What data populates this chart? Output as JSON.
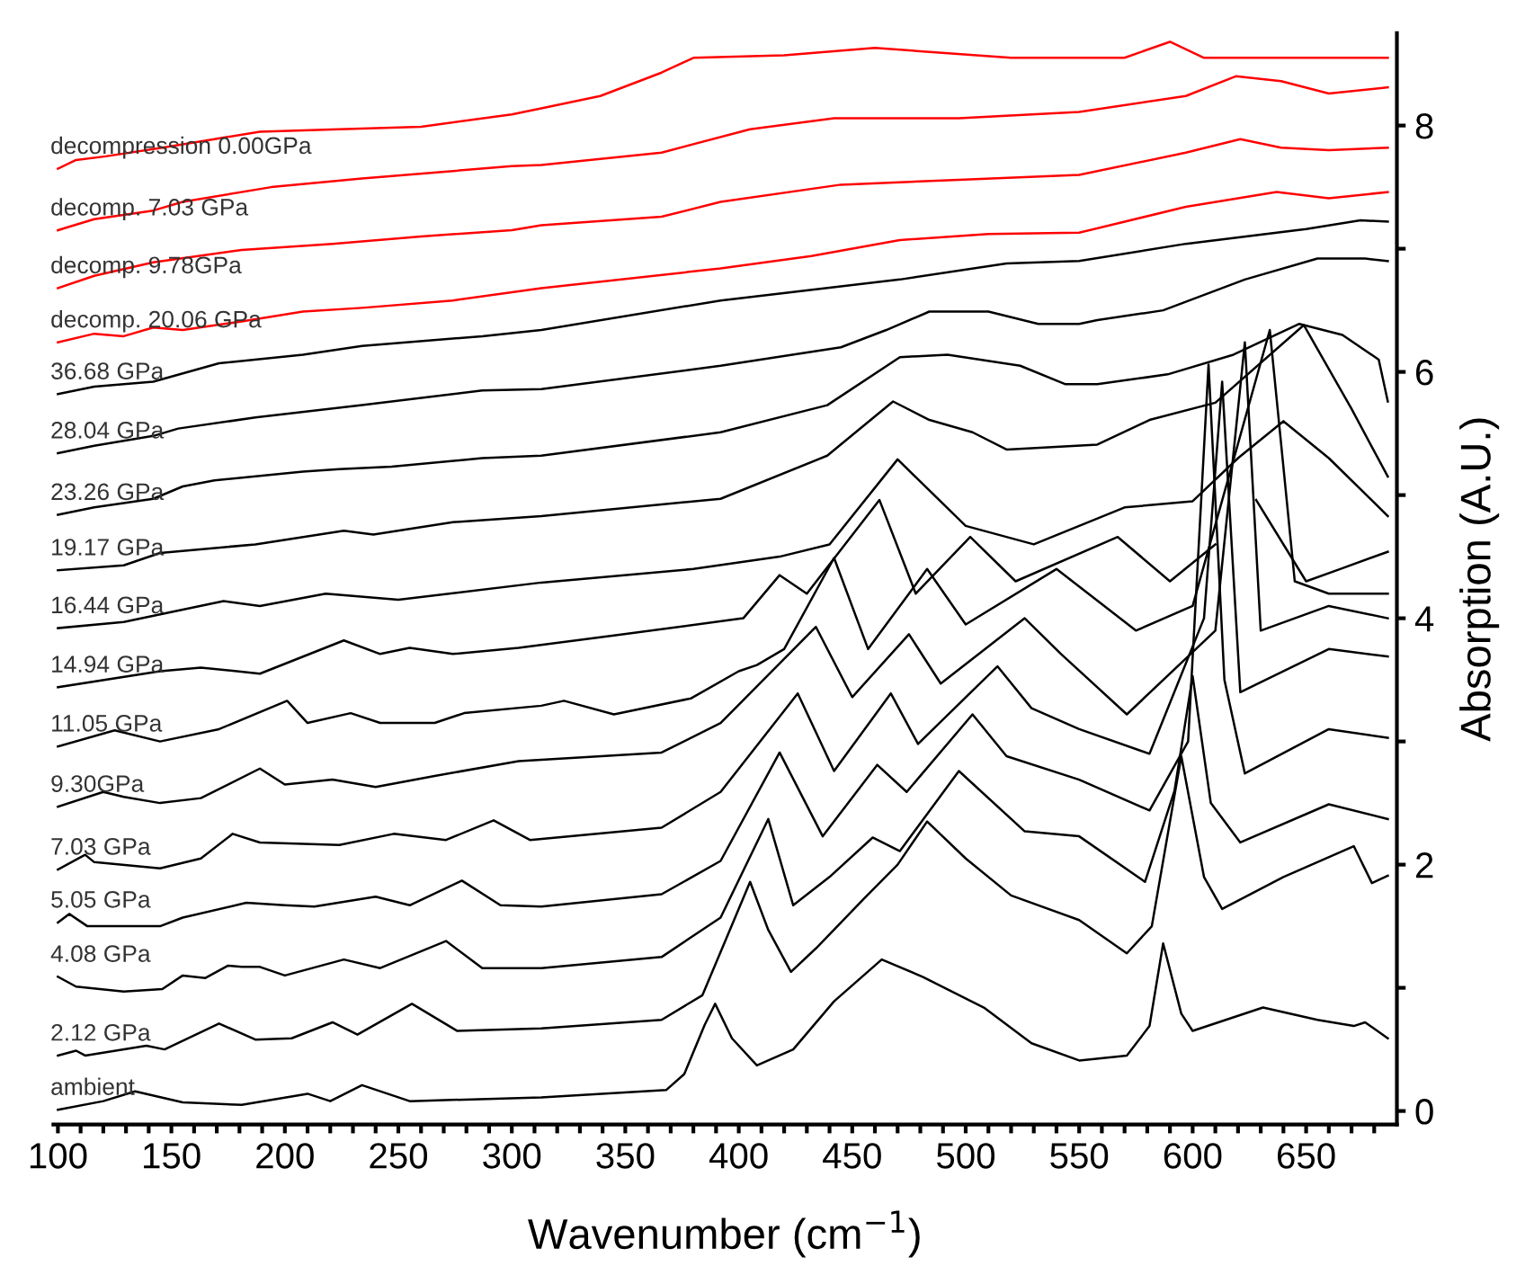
{
  "chart_data": {
    "type": "line",
    "xlabel": "Wavenumber (cm$^{−1}$)",
    "ylabel": "Absorption (A.U.)",
    "xlim": [
      98,
      690
    ],
    "ylim": [
      -0.11,
      8.75
    ],
    "xticks": [
      100,
      {
        "value": 110,
        "label": null
      },
      {
        "value": 120,
        "label": null
      },
      {
        "value": 130,
        "label": null
      },
      {
        "value": 140,
        "label": null
      },
      150,
      {
        "value": 160,
        "label": null
      },
      {
        "value": 170,
        "label": null
      },
      {
        "value": 180,
        "label": null
      },
      {
        "value": 190,
        "label": null
      },
      200,
      {
        "value": 210,
        "label": null
      },
      {
        "value": 220,
        "label": null
      },
      {
        "value": 230,
        "label": null
      },
      {
        "value": 240,
        "label": null
      },
      250,
      {
        "value": 260,
        "label": null
      },
      {
        "value": 270,
        "label": null
      },
      {
        "value": 280,
        "label": null
      },
      {
        "value": 290,
        "label": null
      },
      300,
      {
        "value": 310,
        "label": null
      },
      {
        "value": 320,
        "label": null
      },
      {
        "value": 330,
        "label": null
      },
      {
        "value": 340,
        "label": null
      },
      350,
      {
        "value": 360,
        "label": null
      },
      {
        "value": 370,
        "label": null
      },
      {
        "value": 380,
        "label": null
      },
      {
        "value": 390,
        "label": null
      },
      400,
      {
        "value": 410,
        "label": null
      },
      {
        "value": 420,
        "label": null
      },
      {
        "value": 430,
        "label": null
      },
      {
        "value": 440,
        "label": null
      },
      450,
      {
        "value": 460,
        "label": null
      },
      {
        "value": 470,
        "label": null
      },
      {
        "value": 480,
        "label": null
      },
      {
        "value": 490,
        "label": null
      },
      500,
      {
        "value": 510,
        "label": null
      },
      {
        "value": 520,
        "label": null
      },
      {
        "value": 530,
        "label": null
      },
      {
        "value": 540,
        "label": null
      },
      550,
      {
        "value": 560,
        "label": null
      },
      {
        "value": 570,
        "label": null
      },
      {
        "value": 580,
        "label": null
      },
      {
        "value": 590,
        "label": null
      },
      600,
      {
        "value": 610,
        "label": null
      },
      {
        "value": 620,
        "label": null
      },
      {
        "value": 630,
        "label": null
      },
      {
        "value": 640,
        "label": null
      },
      650,
      {
        "value": 660,
        "label": null
      },
      {
        "value": 670,
        "label": null
      },
      {
        "value": 680,
        "label": null
      }
    ],
    "yticks": [
      0,
      {
        "value": 1,
        "label": null
      },
      2,
      {
        "value": 3,
        "label": null
      },
      4,
      {
        "value": 5,
        "label": null
      },
      6,
      {
        "value": 7,
        "label": null
      },
      8
    ],
    "grid": false,
    "legend": false,
    "marker": "none",
    "line_style": "solid",
    "series": [
      {
        "name": "ambient",
        "color": "#000000",
        "x": [
          100,
          120,
          134,
          155,
          181,
          210,
          220,
          234,
          255,
          313,
          368,
          376,
          385,
          389.6,
          397,
          408,
          424,
          442,
          463,
          481,
          508,
          529,
          550,
          571,
          581,
          587,
          595,
          600,
          631,
          655,
          671,
          676,
          686
        ],
        "values": [
          0.01,
          0.08,
          0.16,
          0.07,
          0.05,
          0.14,
          0.08,
          0.21,
          0.08,
          0.11,
          0.17,
          0.3,
          0.7,
          0.87,
          0.59,
          0.37,
          0.5,
          0.89,
          1.23,
          1.09,
          0.84,
          0.55,
          0.41,
          0.45,
          0.69,
          1.36,
          0.79,
          0.65,
          0.84,
          0.74,
          0.69,
          0.72,
          0.59
        ]
      },
      {
        "name": "2.12 GPa",
        "color": "#000000",
        "x": [
          100,
          108,
          112,
          139,
          147,
          171,
          187,
          203,
          221,
          232,
          256,
          276,
          313,
          366,
          384,
          405,
          413,
          423,
          434,
          455,
          470,
          483,
          500,
          520,
          550,
          571,
          582,
          595,
          605,
          613,
          640,
          671,
          679,
          686
        ],
        "values": [
          0.45,
          0.49,
          0.45,
          0.53,
          0.5,
          0.71,
          0.58,
          0.59,
          0.72,
          0.62,
          0.87,
          0.65,
          0.67,
          0.74,
          0.94,
          1.86,
          1.47,
          1.13,
          1.32,
          1.72,
          2.0,
          2.35,
          2.05,
          1.75,
          1.55,
          1.28,
          1.5,
          2.88,
          1.9,
          1.64,
          1.9,
          2.15,
          1.85,
          1.91
        ]
      },
      {
        "name": "4.08 GPa",
        "color": "#000000",
        "x": [
          100,
          108,
          129,
          146,
          155,
          165,
          175,
          181,
          189,
          200,
          226,
          242,
          271,
          287,
          313,
          366,
          392,
          413,
          424,
          440,
          459,
          471,
          497,
          526,
          550,
          579,
          592,
          600,
          608,
          621,
          660,
          686
        ],
        "values": [
          1.09,
          1.01,
          0.97,
          0.99,
          1.1,
          1.08,
          1.18,
          1.17,
          1.17,
          1.1,
          1.23,
          1.16,
          1.38,
          1.16,
          1.16,
          1.25,
          1.57,
          2.37,
          1.67,
          1.9,
          2.22,
          2.11,
          2.76,
          2.27,
          2.23,
          1.86,
          2.6,
          3.53,
          2.5,
          2.18,
          2.49,
          2.37
        ]
      },
      {
        "name": "5.05 GPa",
        "color": "#000000",
        "x": [
          100,
          105,
          113,
          145,
          155,
          183,
          200,
          213,
          240,
          255,
          278,
          295,
          313,
          366,
          392,
          418,
          437,
          461,
          474,
          503,
          518,
          550,
          581,
          598,
          607,
          614,
          623,
          660,
          686
        ],
        "values": [
          1.53,
          1.6,
          1.5,
          1.5,
          1.57,
          1.69,
          1.67,
          1.66,
          1.74,
          1.67,
          1.87,
          1.67,
          1.66,
          1.76,
          2.03,
          2.91,
          2.23,
          2.81,
          2.59,
          3.22,
          2.88,
          2.69,
          2.44,
          3.0,
          6.06,
          3.5,
          2.74,
          3.1,
          3.03
        ]
      },
      {
        "name": "7.03 GPa",
        "color": "#000000",
        "x": [
          100,
          112,
          116,
          145,
          163,
          177,
          189,
          224,
          248,
          271,
          292,
          308,
          366,
          392,
          426,
          442,
          467,
          479,
          514,
          529,
          550,
          581,
          605,
          613,
          621,
          660,
          686
        ],
        "values": [
          1.96,
          2.08,
          2.02,
          1.97,
          2.05,
          2.25,
          2.18,
          2.16,
          2.25,
          2.2,
          2.36,
          2.2,
          2.3,
          2.59,
          3.39,
          2.76,
          3.39,
          2.98,
          3.61,
          3.27,
          3.1,
          2.9,
          4.0,
          5.92,
          3.4,
          3.75,
          3.69
        ]
      },
      {
        "name": "9.30GPa",
        "color": "#000000",
        "x": [
          100,
          120,
          129,
          145,
          163,
          189,
          200,
          221,
          240,
          266,
          303,
          366,
          392,
          434,
          450,
          475,
          489,
          526,
          542,
          571,
          610,
          623,
          630,
          660,
          686
        ],
        "values": [
          2.47,
          2.59,
          2.55,
          2.5,
          2.54,
          2.78,
          2.65,
          2.69,
          2.63,
          2.72,
          2.84,
          2.91,
          3.15,
          3.93,
          3.36,
          3.87,
          3.47,
          4.0,
          3.71,
          3.22,
          3.9,
          6.24,
          3.9,
          4.1,
          4.0
        ]
      },
      {
        "name": "11.05 GPa",
        "color": "#000000",
        "x": [
          100,
          125,
          145,
          171,
          201,
          210,
          229,
          242,
          266,
          279,
          313,
          323,
          345,
          379,
          400,
          408,
          420,
          442,
          457,
          483,
          500,
          540,
          575,
          600,
          634,
          645,
          660,
          686
        ],
        "values": [
          2.96,
          3.09,
          3.0,
          3.1,
          3.33,
          3.15,
          3.23,
          3.15,
          3.15,
          3.23,
          3.29,
          3.33,
          3.22,
          3.35,
          3.57,
          3.62,
          3.75,
          4.49,
          3.75,
          4.4,
          3.95,
          4.4,
          3.9,
          4.1,
          6.34,
          4.3,
          4.2,
          4.2
        ]
      },
      {
        "name": "14.94 GPa",
        "color": "#000000",
        "x": [
          100,
          145,
          163,
          189,
          226,
          242,
          255,
          274,
          303,
          345,
          402,
          418,
          430,
          462,
          478,
          502,
          522,
          567,
          590,
          610,
          620,
          628,
          650,
          665,
          686
        ],
        "values": [
          3.44,
          3.57,
          3.6,
          3.55,
          3.82,
          3.71,
          3.76,
          3.71,
          3.76,
          3.86,
          4.0,
          4.35,
          4.2,
          4.96,
          4.2,
          4.66,
          4.3,
          4.66,
          4.3,
          4.6,
          null,
          4.96,
          4.3,
          4.4,
          4.54
        ]
      },
      {
        "name": "16.44 GPa",
        "color": "#000000",
        "x": [
          100,
          129,
          173,
          189,
          218,
          250,
          313,
          380,
          418,
          440,
          470,
          500,
          530,
          570,
          600,
          620,
          640,
          660,
          686
        ],
        "values": [
          3.92,
          3.97,
          4.14,
          4.1,
          4.2,
          4.15,
          4.29,
          4.4,
          4.5,
          4.6,
          5.29,
          4.75,
          4.6,
          4.9,
          4.95,
          5.3,
          5.6,
          5.3,
          4.83
        ]
      },
      {
        "name": "19.17 GPa",
        "color": "#000000",
        "x": [
          100,
          129,
          145,
          187,
          226,
          239,
          274,
          313,
          392,
          439,
          468,
          484,
          503,
          518,
          558,
          581,
          610,
          649,
          670,
          686
        ],
        "values": [
          4.39,
          4.43,
          4.53,
          4.6,
          4.71,
          4.68,
          4.78,
          4.83,
          4.97,
          5.32,
          5.76,
          5.61,
          5.51,
          5.37,
          5.41,
          5.61,
          5.75,
          6.38,
          5.7,
          5.15
        ]
      },
      {
        "name": "23.26 GPa",
        "color": "#000000",
        "x": [
          100,
          116,
          142,
          155,
          169,
          208,
          224,
          247,
          287,
          313,
          392,
          439,
          471,
          492,
          524,
          544,
          558,
          589,
          618,
          647,
          666,
          682,
          686
        ],
        "values": [
          4.84,
          4.9,
          4.97,
          5.07,
          5.12,
          5.19,
          5.21,
          5.23,
          5.3,
          5.32,
          5.51,
          5.73,
          6.12,
          6.14,
          6.05,
          5.9,
          5.9,
          5.98,
          6.14,
          6.39,
          6.3,
          6.1,
          5.76
        ]
      },
      {
        "name": "28.04 GPa",
        "color": "#000000",
        "x": [
          100,
          116,
          142,
          153,
          187,
          234,
          287,
          313,
          392,
          445,
          465,
          484,
          510,
          532,
          550,
          558,
          587,
          623,
          655,
          676,
          686
        ],
        "values": [
          5.34,
          5.4,
          5.48,
          5.54,
          5.63,
          5.73,
          5.85,
          5.86,
          6.05,
          6.2,
          6.34,
          6.49,
          6.49,
          6.39,
          6.39,
          6.42,
          6.5,
          6.75,
          6.92,
          6.92,
          6.9
        ]
      },
      {
        "name": "36.68 GPa",
        "color": "#000000",
        "x": [
          100,
          116,
          142,
          171,
          208,
          234,
          287,
          313,
          392,
          471,
          518,
          550,
          597,
          650,
          674,
          686
        ],
        "values": [
          5.82,
          5.88,
          5.92,
          6.07,
          6.14,
          6.21,
          6.29,
          6.34,
          6.58,
          6.75,
          6.88,
          6.9,
          7.04,
          7.16,
          7.23,
          7.22
        ]
      },
      {
        "name": "decomp. 20.06 GPa",
        "color": "#ff0000",
        "x": [
          100,
          116,
          129,
          142,
          155,
          181,
          208,
          234,
          274,
          313,
          392,
          432,
          471,
          510,
          550,
          597,
          637,
          660,
          686
        ],
        "values": [
          6.24,
          6.31,
          6.29,
          6.36,
          6.34,
          6.41,
          6.49,
          6.52,
          6.58,
          6.68,
          6.84,
          6.94,
          7.07,
          7.12,
          7.13,
          7.34,
          7.46,
          7.41,
          7.46
        ]
      },
      {
        "name": "decomp. 9.78GPa",
        "color": "#ff0000",
        "x": [
          100,
          116,
          142,
          181,
          221,
          260,
          300,
          313,
          366,
          392,
          445,
          497,
          550,
          597,
          621,
          639,
          660,
          686
        ],
        "values": [
          6.68,
          6.78,
          6.89,
          6.99,
          7.04,
          7.1,
          7.15,
          7.19,
          7.26,
          7.38,
          7.52,
          7.56,
          7.6,
          7.78,
          7.89,
          7.82,
          7.8,
          7.82
        ]
      },
      {
        "name": "decomp. 7.03 GPa",
        "color": "#ff0000",
        "x": [
          100,
          116,
          142,
          155,
          194,
          234,
          300,
          313,
          366,
          405,
          442,
          497,
          550,
          597,
          619,
          639,
          660,
          686
        ],
        "values": [
          7.15,
          7.24,
          7.31,
          7.38,
          7.5,
          7.57,
          7.67,
          7.68,
          7.78,
          7.97,
          8.06,
          8.06,
          8.11,
          8.24,
          8.4,
          8.36,
          8.26,
          8.31
        ]
      },
      {
        "name": "decompression 0.00GPa",
        "color": "#ff0000",
        "x": [
          100,
          108,
          121,
          146,
          169,
          189,
          224,
          260,
          300,
          313,
          339,
          366,
          380,
          420,
          460,
          520,
          570,
          590,
          605,
          640,
          686
        ],
        "values": [
          7.65,
          7.72,
          7.75,
          7.82,
          7.89,
          7.95,
          7.97,
          7.99,
          8.09,
          8.14,
          8.24,
          8.43,
          8.55,
          8.57,
          8.63,
          8.55,
          8.55,
          8.68,
          8.55,
          8.55,
          8.55
        ]
      }
    ]
  }
}
